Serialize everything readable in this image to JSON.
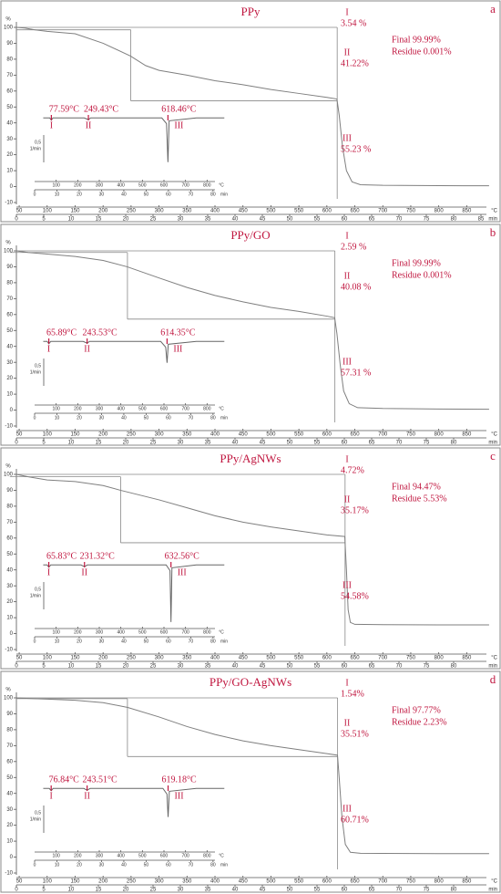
{
  "chart_data": [
    {
      "type": "line",
      "title": "PPy",
      "letter": "a",
      "yunit": "%",
      "ylim": [
        -10,
        100
      ],
      "yticks": [
        100,
        90,
        80,
        70,
        60,
        50,
        40,
        30,
        20,
        10,
        0,
        -10
      ],
      "xlim": [
        45,
        895
      ],
      "xticks": [
        50,
        100,
        150,
        200,
        250,
        300,
        350,
        400,
        450,
        500,
        550,
        600,
        650,
        700,
        750,
        800,
        850
      ],
      "xunit": "°C",
      "x2lim": [
        0,
        87
      ],
      "x2ticks": [
        0,
        5,
        10,
        15,
        20,
        25,
        30,
        35,
        40,
        45,
        50,
        55,
        60,
        65,
        70,
        75,
        80,
        85
      ],
      "x2unit": "min",
      "color": "#7f7f7f",
      "x": [
        45,
        60,
        77,
        100,
        150,
        200,
        249,
        276,
        300,
        350,
        400,
        450,
        500,
        550,
        600,
        618,
        622,
        628,
        635,
        645,
        660,
        700,
        800,
        890
      ],
      "values": [
        100,
        99.6,
        98.5,
        97.5,
        96,
        90,
        82,
        76,
        73,
        70,
        66.5,
        64,
        61,
        58.5,
        56,
        55,
        45,
        25,
        10,
        3,
        1.2,
        0.8,
        0.6,
        0.5
      ],
      "steps": [
        {
          "name": "I",
          "label": "3.54 %"
        },
        {
          "name": "II",
          "label": "41.22%"
        },
        {
          "name": "III",
          "label": "55.23 %"
        }
      ],
      "final": "Final 99.99%",
      "residue": "Residue 0.001%",
      "inset": {
        "xlim": [
          0,
          900
        ],
        "ylim": [
          -2.1,
          0.2
        ],
        "xticks": [
          100,
          200,
          300,
          400,
          500,
          600,
          700,
          800
        ],
        "xunit": "°C",
        "x2lim": [
          0,
          87
        ],
        "x2ticks": [
          0,
          10,
          20,
          30,
          40,
          50,
          60,
          70,
          80
        ],
        "x2unit": "min",
        "scale_value": "0,5",
        "scale_unit": "1/min",
        "x": [
          40,
          70,
          77.59,
          85,
          230,
          249.43,
          260,
          590,
          612,
          618.46,
          624,
          750,
          880
        ],
        "values": [
          0,
          0,
          -0.08,
          0,
          0,
          -0.06,
          0,
          0,
          -0.2,
          -1.55,
          -0.1,
          0,
          0
        ],
        "peaks": [
          {
            "name": "I",
            "value": 77.59,
            "label": "77.59°C"
          },
          {
            "name": "II",
            "value": 249.43,
            "label": "249.43°C"
          },
          {
            "name": "III",
            "value": 618.46,
            "label": "618.46°C"
          }
        ]
      }
    },
    {
      "type": "line",
      "title": "PPy/GO",
      "letter": "b",
      "yunit": "%",
      "ylim": [
        -10,
        100
      ],
      "yticks": [
        100,
        90,
        80,
        70,
        60,
        50,
        40,
        30,
        20,
        10,
        0,
        -10
      ],
      "xlim": [
        45,
        895
      ],
      "xticks": [
        50,
        100,
        150,
        200,
        250,
        300,
        350,
        400,
        450,
        500,
        550,
        600,
        650,
        700,
        750,
        800,
        850
      ],
      "xunit": "°C",
      "x2lim": [
        0,
        87
      ],
      "x2ticks": [
        0,
        5,
        10,
        15,
        20,
        25,
        30,
        35,
        40,
        45,
        50,
        55,
        60,
        65,
        70,
        75,
        80
      ],
      "x2unit": "min",
      "color": "#7f7f7f",
      "x": [
        45,
        66,
        100,
        150,
        200,
        243,
        300,
        350,
        400,
        450,
        500,
        550,
        600,
        614,
        618,
        624,
        630,
        640,
        655,
        700,
        800,
        890
      ],
      "values": [
        100,
        99,
        98,
        96.5,
        94,
        90,
        83,
        77,
        72,
        68,
        64.5,
        62,
        59,
        58,
        48,
        28,
        12,
        4,
        1.5,
        1,
        0.7,
        0.5
      ],
      "steps": [
        {
          "name": "I",
          "label": "2.59 %"
        },
        {
          "name": "II",
          "label": "40.08 %"
        },
        {
          "name": "III",
          "label": "57.31 %"
        }
      ],
      "final": "Final 99.99%",
      "residue": "Residue 0.001%",
      "inset": {
        "xlim": [
          0,
          900
        ],
        "ylim": [
          -2.1,
          0.2
        ],
        "xticks": [
          100,
          200,
          300,
          400,
          500,
          600,
          700,
          800
        ],
        "xunit": "°C",
        "x2lim": [
          0,
          87
        ],
        "x2ticks": [
          0,
          10,
          20,
          30,
          40,
          50,
          60,
          70,
          80
        ],
        "x2unit": "min",
        "scale_value": "0,5",
        "scale_unit": "1/min",
        "x": [
          40,
          58,
          65.89,
          75,
          225,
          243.53,
          255,
          585,
          608,
          614.35,
          620,
          750,
          880
        ],
        "values": [
          0,
          0,
          -0.08,
          0,
          0,
          -0.06,
          0,
          0,
          -0.2,
          -0.75,
          -0.1,
          0,
          0
        ],
        "peaks": [
          {
            "name": "I",
            "value": 65.89,
            "label": "65.89°C"
          },
          {
            "name": "II",
            "value": 243.53,
            "label": "243.53°C"
          },
          {
            "name": "III",
            "value": 614.35,
            "label": "614.35°C"
          }
        ]
      }
    },
    {
      "type": "line",
      "title": "PPy/AgNWs",
      "letter": "c",
      "yunit": "%",
      "ylim": [
        -10,
        100
      ],
      "yticks": [
        100,
        90,
        80,
        70,
        60,
        50,
        40,
        30,
        20,
        10,
        0,
        -10
      ],
      "xlim": [
        45,
        895
      ],
      "xticks": [
        50,
        100,
        150,
        200,
        250,
        300,
        350,
        400,
        450,
        500,
        550,
        600,
        650,
        700,
        750,
        800,
        850
      ],
      "xunit": "°C",
      "x2lim": [
        0,
        87
      ],
      "x2ticks": [
        0,
        5,
        10,
        15,
        20,
        25,
        30,
        35,
        40,
        45,
        50,
        55,
        60,
        65,
        70,
        75,
        80
      ],
      "x2unit": "min",
      "color": "#7f7f7f",
      "x": [
        45,
        66,
        100,
        150,
        200,
        231,
        300,
        350,
        400,
        450,
        500,
        550,
        600,
        632,
        635,
        638,
        642,
        650,
        700,
        800,
        890
      ],
      "values": [
        100,
        98.5,
        96.5,
        95.5,
        93,
        90,
        84,
        79,
        74,
        70,
        67,
        64.5,
        62,
        61,
        40,
        15,
        7,
        5.8,
        5.6,
        5.5,
        5.5
      ],
      "steps": [
        {
          "name": "I",
          "label": "4.72%"
        },
        {
          "name": "II",
          "label": "35.17%"
        },
        {
          "name": "III",
          "label": "54.58%"
        }
      ],
      "final": "Final 94.47%",
      "residue": "Residue 5.53%",
      "inset": {
        "xlim": [
          0,
          900
        ],
        "ylim": [
          -2.1,
          0.2
        ],
        "xticks": [
          100,
          200,
          300,
          400,
          500,
          600,
          700,
          800
        ],
        "xunit": "°C",
        "x2lim": [
          0,
          87
        ],
        "x2ticks": [
          0,
          10,
          20,
          30,
          40,
          50,
          60,
          70,
          80
        ],
        "x2unit": "min",
        "scale_value": "0,5",
        "scale_unit": "1/min",
        "x": [
          40,
          58,
          65.83,
          75,
          215,
          231.32,
          245,
          610,
          628,
          632.56,
          637,
          750,
          880
        ],
        "values": [
          0,
          0,
          -0.08,
          0,
          0,
          -0.06,
          0,
          0,
          -0.2,
          -2.0,
          -0.1,
          0,
          0
        ],
        "peaks": [
          {
            "name": "I",
            "value": 65.83,
            "label": "65.83°C"
          },
          {
            "name": "II",
            "value": 231.32,
            "label": "231.32°C"
          },
          {
            "name": "III",
            "value": 632.56,
            "label": "632.56°C"
          }
        ]
      }
    },
    {
      "type": "line",
      "title": "PPy/GO-AgNWs",
      "letter": "d",
      "yunit": "%",
      "ylim": [
        -10,
        100
      ],
      "yticks": [
        100,
        90,
        80,
        70,
        60,
        50,
        40,
        30,
        20,
        10,
        0,
        -10
      ],
      "xlim": [
        45,
        895
      ],
      "xticks": [
        50,
        100,
        150,
        200,
        250,
        300,
        350,
        400,
        450,
        500,
        550,
        600,
        650,
        700,
        750,
        800,
        850
      ],
      "xunit": "°C",
      "x2lim": [
        0,
        87
      ],
      "x2ticks": [
        0,
        5,
        10,
        15,
        20,
        25,
        30,
        35,
        40,
        45,
        50,
        55,
        60,
        65,
        70,
        75,
        80
      ],
      "x2unit": "min",
      "color": "#7f7f7f",
      "x": [
        45,
        77,
        100,
        150,
        200,
        244,
        300,
        350,
        400,
        450,
        500,
        550,
        600,
        619,
        622,
        627,
        633,
        642,
        660,
        700,
        800,
        890
      ],
      "values": [
        100,
        99.5,
        99.2,
        98.5,
        97,
        94,
        88,
        82,
        77,
        73,
        70,
        67.5,
        65,
        64,
        50,
        25,
        8,
        3,
        2.4,
        2.3,
        2.2,
        2.2
      ],
      "steps": [
        {
          "name": "I",
          "label": "1.54%"
        },
        {
          "name": "II",
          "label": "35.51%"
        },
        {
          "name": "III",
          "label": "60.71%"
        }
      ],
      "final": "Final 97.77%",
      "residue": "Residue 2.23%",
      "inset": {
        "xlim": [
          0,
          900
        ],
        "ylim": [
          -2.1,
          0.2
        ],
        "xticks": [
          100,
          200,
          300,
          400,
          500,
          600,
          700,
          800
        ],
        "xunit": "°C",
        "x2lim": [
          0,
          87
        ],
        "x2ticks": [
          0,
          10,
          20,
          30,
          40,
          50,
          60,
          70,
          80
        ],
        "x2unit": "min",
        "scale_value": "0,5",
        "scale_unit": "1/min",
        "x": [
          40,
          68,
          76.84,
          86,
          228,
          243.51,
          258,
          595,
          614,
          619.18,
          625,
          750,
          880
        ],
        "values": [
          0,
          0,
          -0.08,
          0,
          0,
          -0.06,
          0,
          0,
          -0.2,
          -1.0,
          -0.1,
          0,
          0
        ],
        "peaks": [
          {
            "name": "I",
            "value": 76.84,
            "label": "76.84°C"
          },
          {
            "name": "II",
            "value": 243.51,
            "label": "243.51°C"
          },
          {
            "name": "III",
            "value": 619.18,
            "label": "619.18°C"
          }
        ]
      }
    }
  ]
}
